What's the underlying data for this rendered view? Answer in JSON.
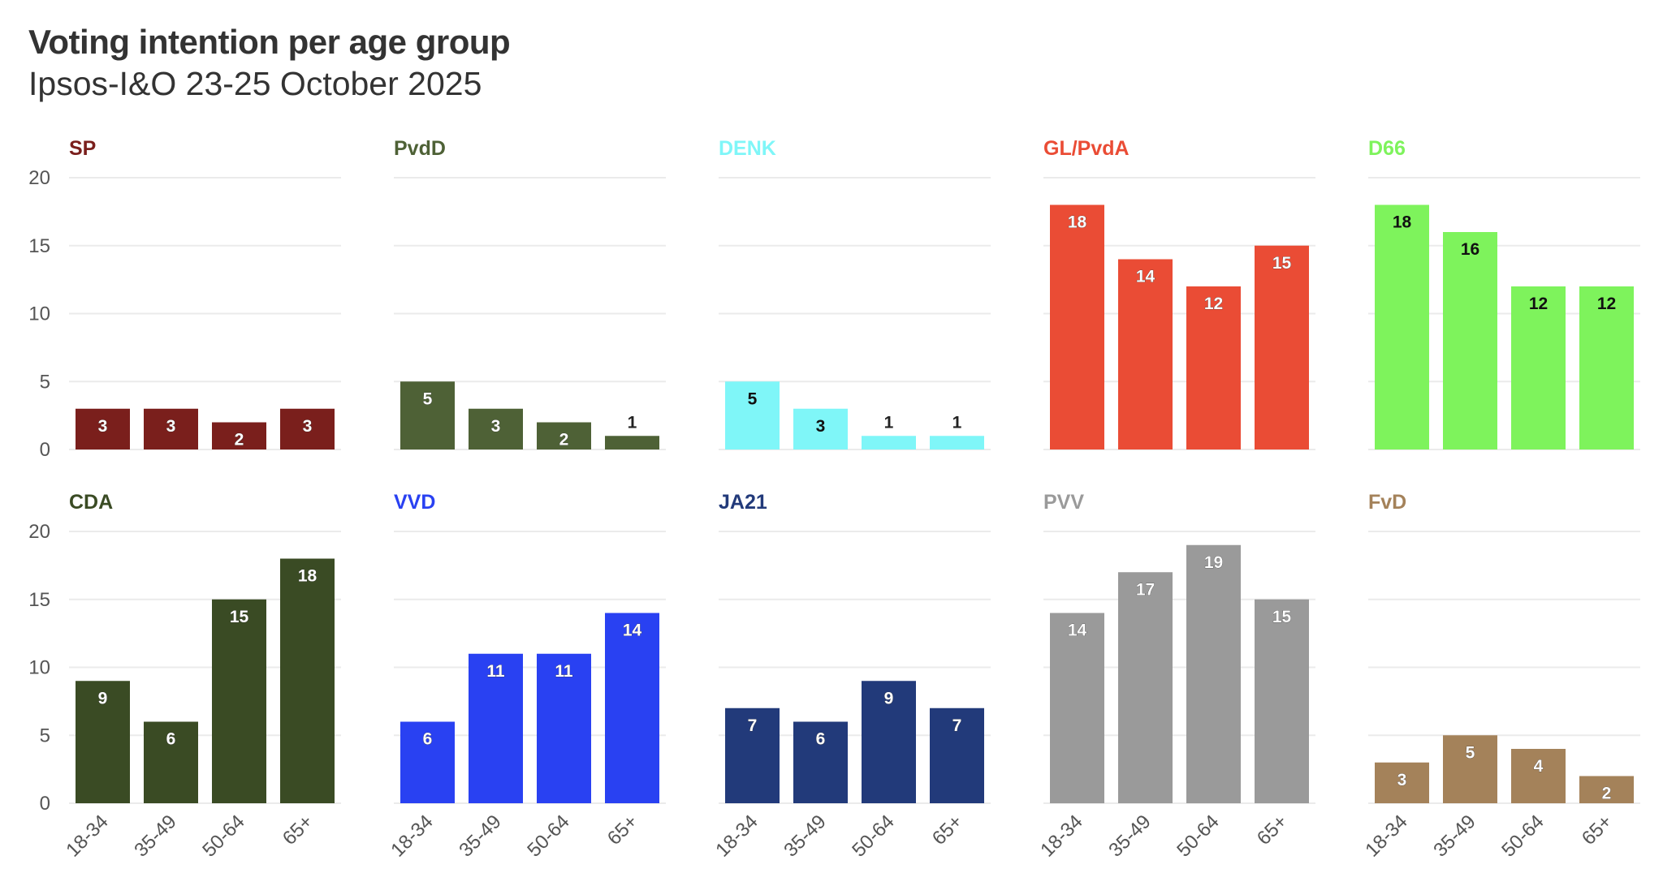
{
  "chart_data": {
    "type": "bar",
    "title": "Voting intention per age group",
    "subtitle": "Ipsos-I&O 23-25 October 2025",
    "categories": [
      "18-34",
      "35-49",
      "50-64",
      "65+"
    ],
    "ylim": [
      0,
      20
    ],
    "yticks": [
      "0",
      "5",
      "10",
      "15",
      "20"
    ],
    "grid": true,
    "panels": [
      {
        "name": "SP",
        "color": "#7a1f1c",
        "values": [
          3,
          3,
          2,
          3
        ]
      },
      {
        "name": "PvdD",
        "color": "#4e6136",
        "values": [
          5,
          3,
          2,
          1
        ]
      },
      {
        "name": "DENK",
        "color": "#7ff6f8",
        "values": [
          5,
          3,
          1,
          1
        ]
      },
      {
        "name": "GL/PvdA",
        "color": "#ea4c35",
        "values": [
          18,
          14,
          12,
          15
        ]
      },
      {
        "name": "D66",
        "color": "#7ef35c",
        "values": [
          18,
          16,
          12,
          12
        ]
      },
      {
        "name": "CDA",
        "color": "#3a4b24",
        "values": [
          9,
          6,
          15,
          18
        ]
      },
      {
        "name": "VVD",
        "color": "#2941f2",
        "values": [
          6,
          11,
          11,
          14
        ]
      },
      {
        "name": "JA21",
        "color": "#223a7a",
        "values": [
          7,
          6,
          9,
          7
        ]
      },
      {
        "name": "PVV",
        "color": "#9a9a9a",
        "values": [
          14,
          17,
          19,
          15
        ]
      },
      {
        "name": "FvD",
        "color": "#a4825a",
        "values": [
          3,
          5,
          4,
          2
        ]
      }
    ]
  }
}
